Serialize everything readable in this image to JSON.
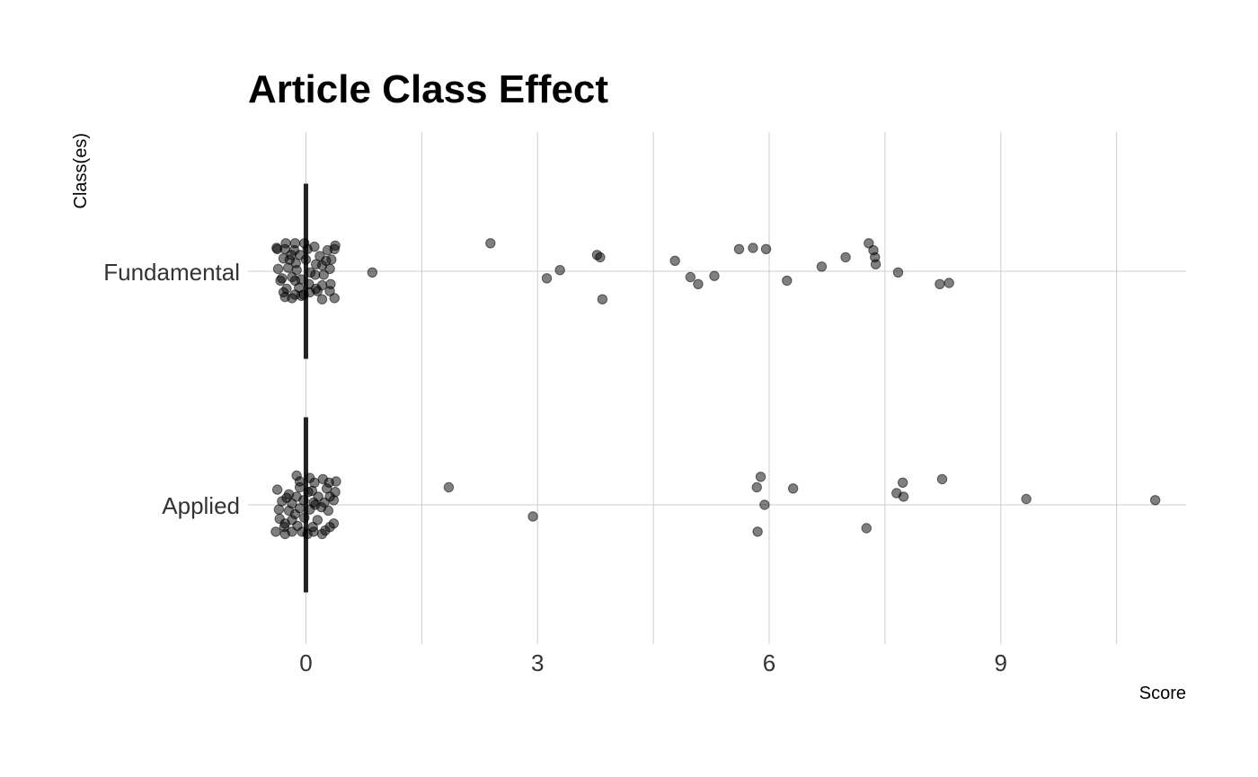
{
  "chart_data": {
    "type": "scatter",
    "title": "Article Class Effect",
    "xlabel": "Score",
    "ylabel": "Class(es)",
    "xlim": [
      -0.75,
      11.4
    ],
    "x_ticks": [
      0,
      3,
      6,
      9
    ],
    "x_tick_labels": [
      "0",
      "3",
      "6",
      "9"
    ],
    "categories": [
      "Fundamental",
      "Applied"
    ],
    "grid": true,
    "legend": "none",
    "colors": {
      "point": "#000000",
      "zero_bar": "#222222",
      "grid": "#cccccc"
    },
    "reference_bar": {
      "x": 0,
      "span": 0.75
    },
    "series": [
      {
        "category": "Fundamental",
        "points": [
          {
            "x": -0.37,
            "jitter": 0.19
          },
          {
            "x": -0.26,
            "jitter": 0.24
          },
          {
            "x": -0.14,
            "jitter": 0.24
          },
          {
            "x": -0.02,
            "jitter": 0.24
          },
          {
            "x": 0.11,
            "jitter": 0.21
          },
          {
            "x": 0.38,
            "jitter": 0.22
          },
          {
            "x": -0.38,
            "jitter": 0.2
          },
          {
            "x": -0.27,
            "jitter": 0.19
          },
          {
            "x": -0.15,
            "jitter": 0.18
          },
          {
            "x": 0.02,
            "jitter": 0.19
          },
          {
            "x": 0.28,
            "jitter": 0.18
          },
          {
            "x": 0.37,
            "jitter": 0.19
          },
          {
            "x": -0.19,
            "jitter": 0.14
          },
          {
            "x": -0.08,
            "jitter": 0.14
          },
          {
            "x": 0.18,
            "jitter": 0.13
          },
          {
            "x": 0.33,
            "jitter": 0.1
          },
          {
            "x": -0.29,
            "jitter": 0.11
          },
          {
            "x": -0.13,
            "jitter": 0.07
          },
          {
            "x": 0.0,
            "jitter": 0.1
          },
          {
            "x": 0.26,
            "jitter": 0.09
          },
          {
            "x": -0.36,
            "jitter": 0.02
          },
          {
            "x": -0.23,
            "jitter": 0.03
          },
          {
            "x": -0.12,
            "jitter": 0.01
          },
          {
            "x": 0.06,
            "jitter": -0.01
          },
          {
            "x": 0.21,
            "jitter": 0.05
          },
          {
            "x": 0.31,
            "jitter": 0.02
          },
          {
            "x": -0.31,
            "jitter": -0.06
          },
          {
            "x": -0.18,
            "jitter": -0.05
          },
          {
            "x": -0.06,
            "jitter": -0.07
          },
          {
            "x": 0.12,
            "jitter": -0.03
          },
          {
            "x": 0.23,
            "jitter": -0.03
          },
          {
            "x": -0.33,
            "jitter": -0.08
          },
          {
            "x": -0.14,
            "jitter": -0.08
          },
          {
            "x": 0.04,
            "jitter": -0.11
          },
          {
            "x": 0.21,
            "jitter": -0.12
          },
          {
            "x": 0.32,
            "jitter": -0.11
          },
          {
            "x": -0.25,
            "jitter": -0.15
          },
          {
            "x": -0.09,
            "jitter": -0.14
          },
          {
            "x": 0.13,
            "jitter": -0.15
          },
          {
            "x": 0.31,
            "jitter": -0.17
          },
          {
            "x": -0.29,
            "jitter": -0.18
          },
          {
            "x": -0.14,
            "jitter": -0.2
          },
          {
            "x": -0.03,
            "jitter": -0.2
          },
          {
            "x": 0.15,
            "jitter": -0.17
          },
          {
            "x": 0.37,
            "jitter": -0.23
          },
          {
            "x": -0.27,
            "jitter": -0.22
          },
          {
            "x": -0.18,
            "jitter": -0.23
          },
          {
            "x": -0.06,
            "jitter": -0.21
          },
          {
            "x": 0.21,
            "jitter": -0.24
          },
          {
            "x": 0.05,
            "jitter": -0.18
          },
          {
            "x": -0.21,
            "jitter": 0.1
          },
          {
            "x": 0.13,
            "jitter": 0.06
          },
          {
            "x": 0.86,
            "jitter": -0.01
          },
          {
            "x": 2.39,
            "jitter": 0.24
          },
          {
            "x": 3.12,
            "jitter": -0.06
          },
          {
            "x": 3.29,
            "jitter": 0.01
          },
          {
            "x": 3.77,
            "jitter": 0.14
          },
          {
            "x": 3.81,
            "jitter": 0.12
          },
          {
            "x": 3.84,
            "jitter": -0.24
          },
          {
            "x": 4.78,
            "jitter": 0.09
          },
          {
            "x": 4.98,
            "jitter": -0.05
          },
          {
            "x": 5.08,
            "jitter": -0.11
          },
          {
            "x": 5.29,
            "jitter": -0.04
          },
          {
            "x": 5.61,
            "jitter": 0.19
          },
          {
            "x": 5.79,
            "jitter": 0.2
          },
          {
            "x": 5.96,
            "jitter": 0.19
          },
          {
            "x": 6.23,
            "jitter": -0.08
          },
          {
            "x": 6.68,
            "jitter": 0.04
          },
          {
            "x": 6.99,
            "jitter": 0.12
          },
          {
            "x": 7.29,
            "jitter": 0.24
          },
          {
            "x": 7.35,
            "jitter": 0.18
          },
          {
            "x": 7.37,
            "jitter": 0.12
          },
          {
            "x": 7.38,
            "jitter": 0.06
          },
          {
            "x": 7.67,
            "jitter": -0.01
          },
          {
            "x": 8.21,
            "jitter": -0.11
          },
          {
            "x": 8.33,
            "jitter": -0.1
          }
        ]
      },
      {
        "category": "Applied",
        "points": [
          {
            "x": -0.12,
            "jitter": 0.25
          },
          {
            "x": 0.05,
            "jitter": 0.23
          },
          {
            "x": 0.22,
            "jitter": 0.22
          },
          {
            "x": 0.39,
            "jitter": 0.2
          },
          {
            "x": -0.08,
            "jitter": 0.2
          },
          {
            "x": 0.11,
            "jitter": 0.19
          },
          {
            "x": 0.3,
            "jitter": 0.19
          },
          {
            "x": -0.37,
            "jitter": 0.13
          },
          {
            "x": -0.22,
            "jitter": 0.09
          },
          {
            "x": -0.08,
            "jitter": 0.15
          },
          {
            "x": 0.08,
            "jitter": 0.12
          },
          {
            "x": 0.27,
            "jitter": 0.14
          },
          {
            "x": 0.38,
            "jitter": 0.11
          },
          {
            "x": -0.25,
            "jitter": 0.06
          },
          {
            "x": -0.12,
            "jitter": 0.07
          },
          {
            "x": 0.03,
            "jitter": 0.11
          },
          {
            "x": 0.16,
            "jitter": 0.07
          },
          {
            "x": 0.31,
            "jitter": 0.07
          },
          {
            "x": -0.31,
            "jitter": 0.03
          },
          {
            "x": -0.18,
            "jitter": 0.01
          },
          {
            "x": -0.03,
            "jitter": 0.04
          },
          {
            "x": 0.1,
            "jitter": 0.02
          },
          {
            "x": 0.24,
            "jitter": 0.02
          },
          {
            "x": 0.36,
            "jitter": 0.04
          },
          {
            "x": -0.35,
            "jitter": -0.04
          },
          {
            "x": -0.22,
            "jitter": -0.05
          },
          {
            "x": -0.08,
            "jitter": -0.03
          },
          {
            "x": 0.05,
            "jitter": -0.04
          },
          {
            "x": 0.2,
            "jitter": -0.02
          },
          {
            "x": 0.29,
            "jitter": -0.05
          },
          {
            "x": -0.34,
            "jitter": -0.12
          },
          {
            "x": -0.18,
            "jitter": -0.13
          },
          {
            "x": -0.02,
            "jitter": -0.11
          },
          {
            "x": 0.15,
            "jitter": -0.13
          },
          {
            "x": 0.36,
            "jitter": -0.16
          },
          {
            "x": -0.27,
            "jitter": -0.16
          },
          {
            "x": -0.11,
            "jitter": -0.18
          },
          {
            "x": 0.09,
            "jitter": -0.19
          },
          {
            "x": 0.31,
            "jitter": -0.19
          },
          {
            "x": -0.28,
            "jitter": -0.19
          },
          {
            "x": -0.18,
            "jitter": -0.23
          },
          {
            "x": -0.05,
            "jitter": -0.23
          },
          {
            "x": 0.1,
            "jitter": -0.23
          },
          {
            "x": 0.25,
            "jitter": -0.22
          },
          {
            "x": -0.39,
            "jitter": -0.23
          },
          {
            "x": -0.27,
            "jitter": -0.25
          },
          {
            "x": 0.02,
            "jitter": -0.25
          },
          {
            "x": 0.21,
            "jitter": -0.25
          },
          {
            "x": 0.12,
            "jitter": 0.0
          },
          {
            "x": -0.14,
            "jitter": -0.08
          },
          {
            "x": 1.85,
            "jitter": 0.15
          },
          {
            "x": 2.94,
            "jitter": -0.1
          },
          {
            "x": 5.84,
            "jitter": 0.15
          },
          {
            "x": 5.85,
            "jitter": -0.23
          },
          {
            "x": 5.89,
            "jitter": 0.24
          },
          {
            "x": 5.94,
            "jitter": 0.0
          },
          {
            "x": 6.31,
            "jitter": 0.14
          },
          {
            "x": 7.26,
            "jitter": -0.2
          },
          {
            "x": 7.65,
            "jitter": 0.1
          },
          {
            "x": 7.73,
            "jitter": 0.19
          },
          {
            "x": 7.74,
            "jitter": 0.07
          },
          {
            "x": 8.24,
            "jitter": 0.22
          },
          {
            "x": 9.33,
            "jitter": 0.05
          },
          {
            "x": 11.0,
            "jitter": 0.04
          }
        ]
      }
    ]
  }
}
